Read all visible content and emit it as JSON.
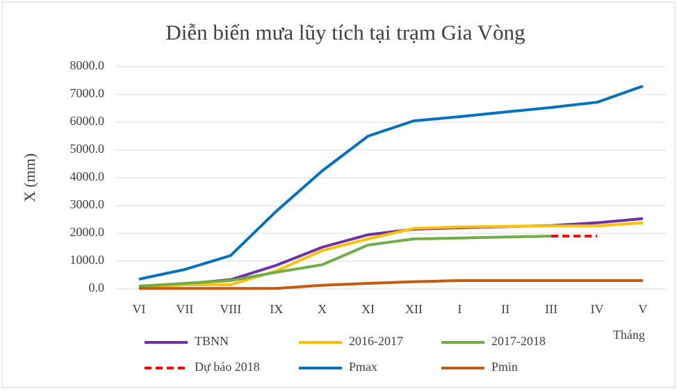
{
  "chart_data": {
    "type": "line",
    "title": "Diễn biến mưa lũy tích tại trạm Gia Vòng",
    "y_label": "X (mm)",
    "x_label": "Tháng",
    "categories": [
      "VI",
      "VII",
      "VIII",
      "IX",
      "X",
      "XI",
      "XII",
      "I",
      "II",
      "III",
      "IV",
      "V"
    ],
    "series": [
      {
        "name": "TBNN",
        "color": "#7030a0",
        "values": [
          100,
          180,
          330,
          850,
          1500,
          1950,
          2150,
          2200,
          2240,
          2280,
          2380,
          2530
        ]
      },
      {
        "name": "2016-2017",
        "color": "#ffc000",
        "values": [
          50,
          150,
          150,
          650,
          1380,
          1800,
          2180,
          2230,
          2250,
          2270,
          2270,
          2380
        ]
      },
      {
        "name": "2017-2018",
        "color": "#70ad47",
        "values": [
          100,
          200,
          300,
          600,
          870,
          1580,
          1800,
          1830,
          1870,
          1900,
          null,
          null
        ]
      },
      {
        "name": "Dự báo 2018",
        "color": "#ff0000",
        "dashed": true,
        "values": [
          null,
          null,
          null,
          null,
          null,
          null,
          null,
          null,
          null,
          1900,
          1900,
          null
        ]
      },
      {
        "name": "Pmax",
        "color": "#0070c0",
        "values": [
          350,
          700,
          1200,
          2800,
          4250,
          5500,
          6050,
          6200,
          6370,
          6530,
          6720,
          7300
        ]
      },
      {
        "name": "Pmin",
        "color": "#c55a11",
        "values": [
          20,
          20,
          20,
          20,
          130,
          200,
          260,
          300,
          300,
          300,
          300,
          300
        ]
      }
    ],
    "ylim": [
      0,
      8000
    ],
    "yticks": [
      {
        "value": 0,
        "label": "0.0"
      },
      {
        "value": 1000,
        "label": "1000.0"
      },
      {
        "value": 2000,
        "label": "2000.0"
      },
      {
        "value": 3000,
        "label": "3000.0"
      },
      {
        "value": 4000,
        "label": "4000.0"
      },
      {
        "value": 5000,
        "label": "5000.0"
      },
      {
        "value": 6000,
        "label": "6000.0"
      },
      {
        "value": 7000,
        "label": "7000.0"
      },
      {
        "value": 8000,
        "label": "8000.0"
      }
    ],
    "grid": true
  }
}
